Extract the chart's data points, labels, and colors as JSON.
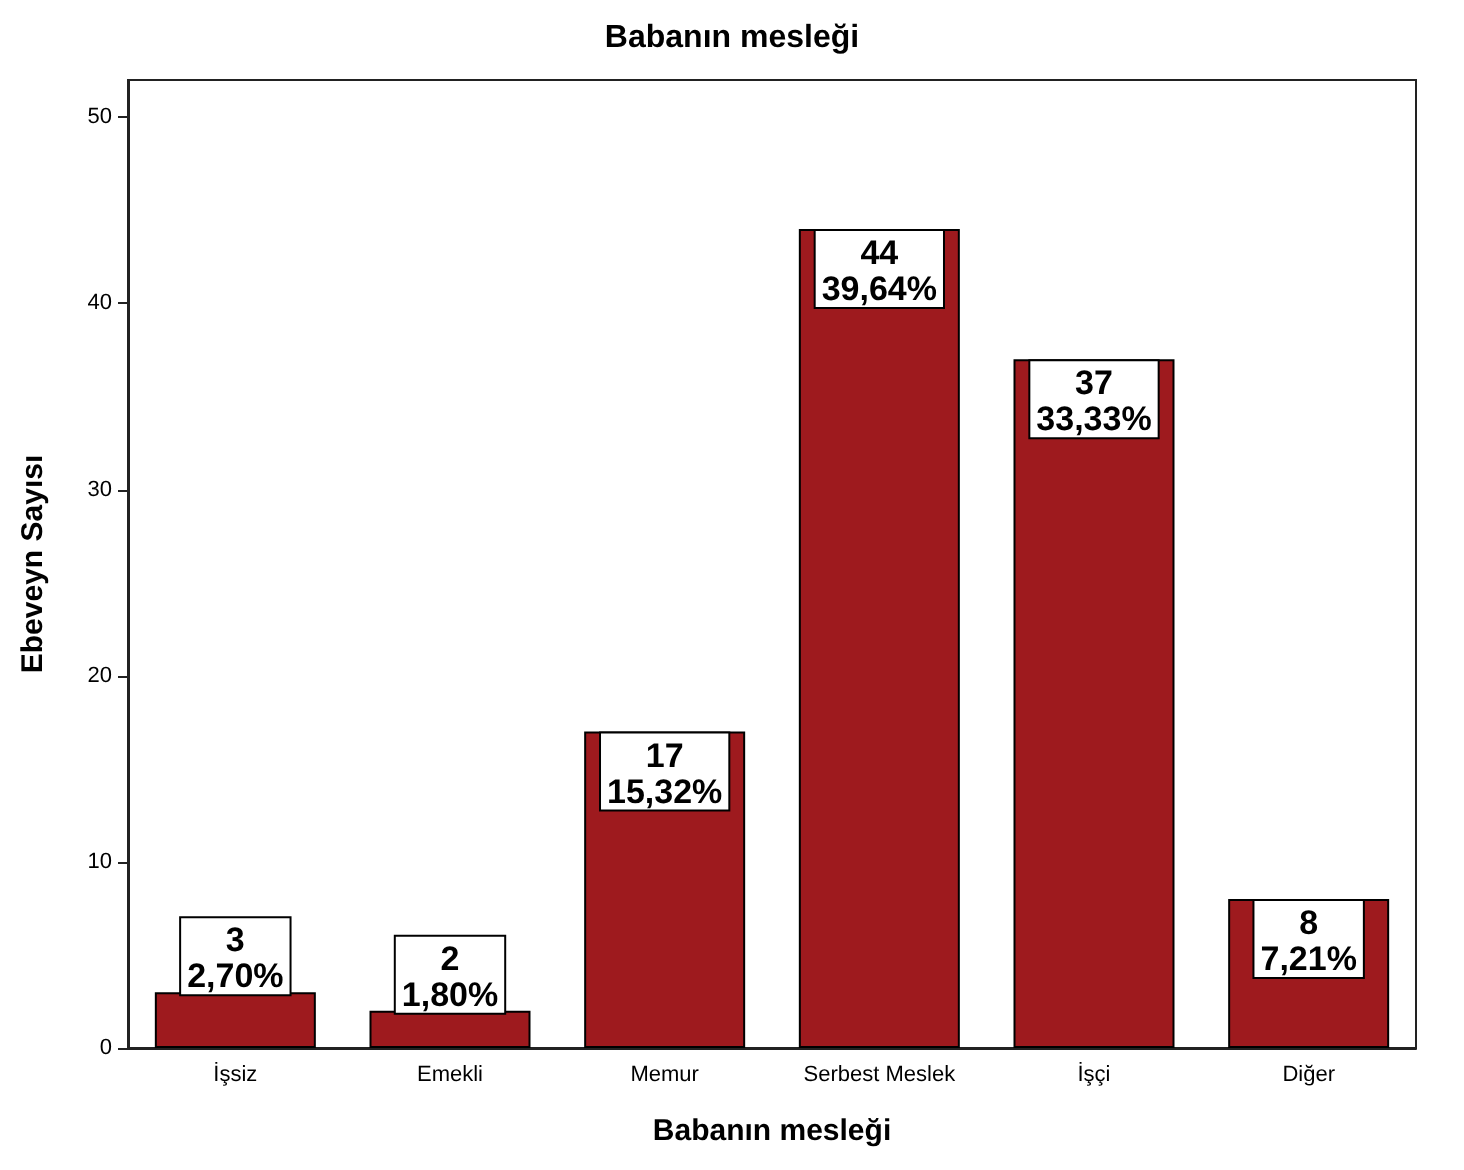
{
  "chart_data": {
    "type": "bar",
    "title": "Babanın mesleği",
    "xlabel": "Babanın mesleği",
    "ylabel": "Ebeveyn Sayısı",
    "categories": [
      "İşsiz",
      "Emekli",
      "Memur",
      "Serbest Meslek",
      "İşçi",
      "Diğer"
    ],
    "values": [
      3,
      2,
      17,
      44,
      37,
      8
    ],
    "value_labels": [
      "3\n2,70%",
      "2\n1,80%",
      "17\n15,32%",
      "44\n39,64%",
      "37\n33,33%",
      "8\n7,21%"
    ],
    "color": "#9e1a1e",
    "ylim": [
      0,
      52
    ],
    "yticks": [
      0,
      10,
      20,
      30,
      40,
      50
    ]
  }
}
